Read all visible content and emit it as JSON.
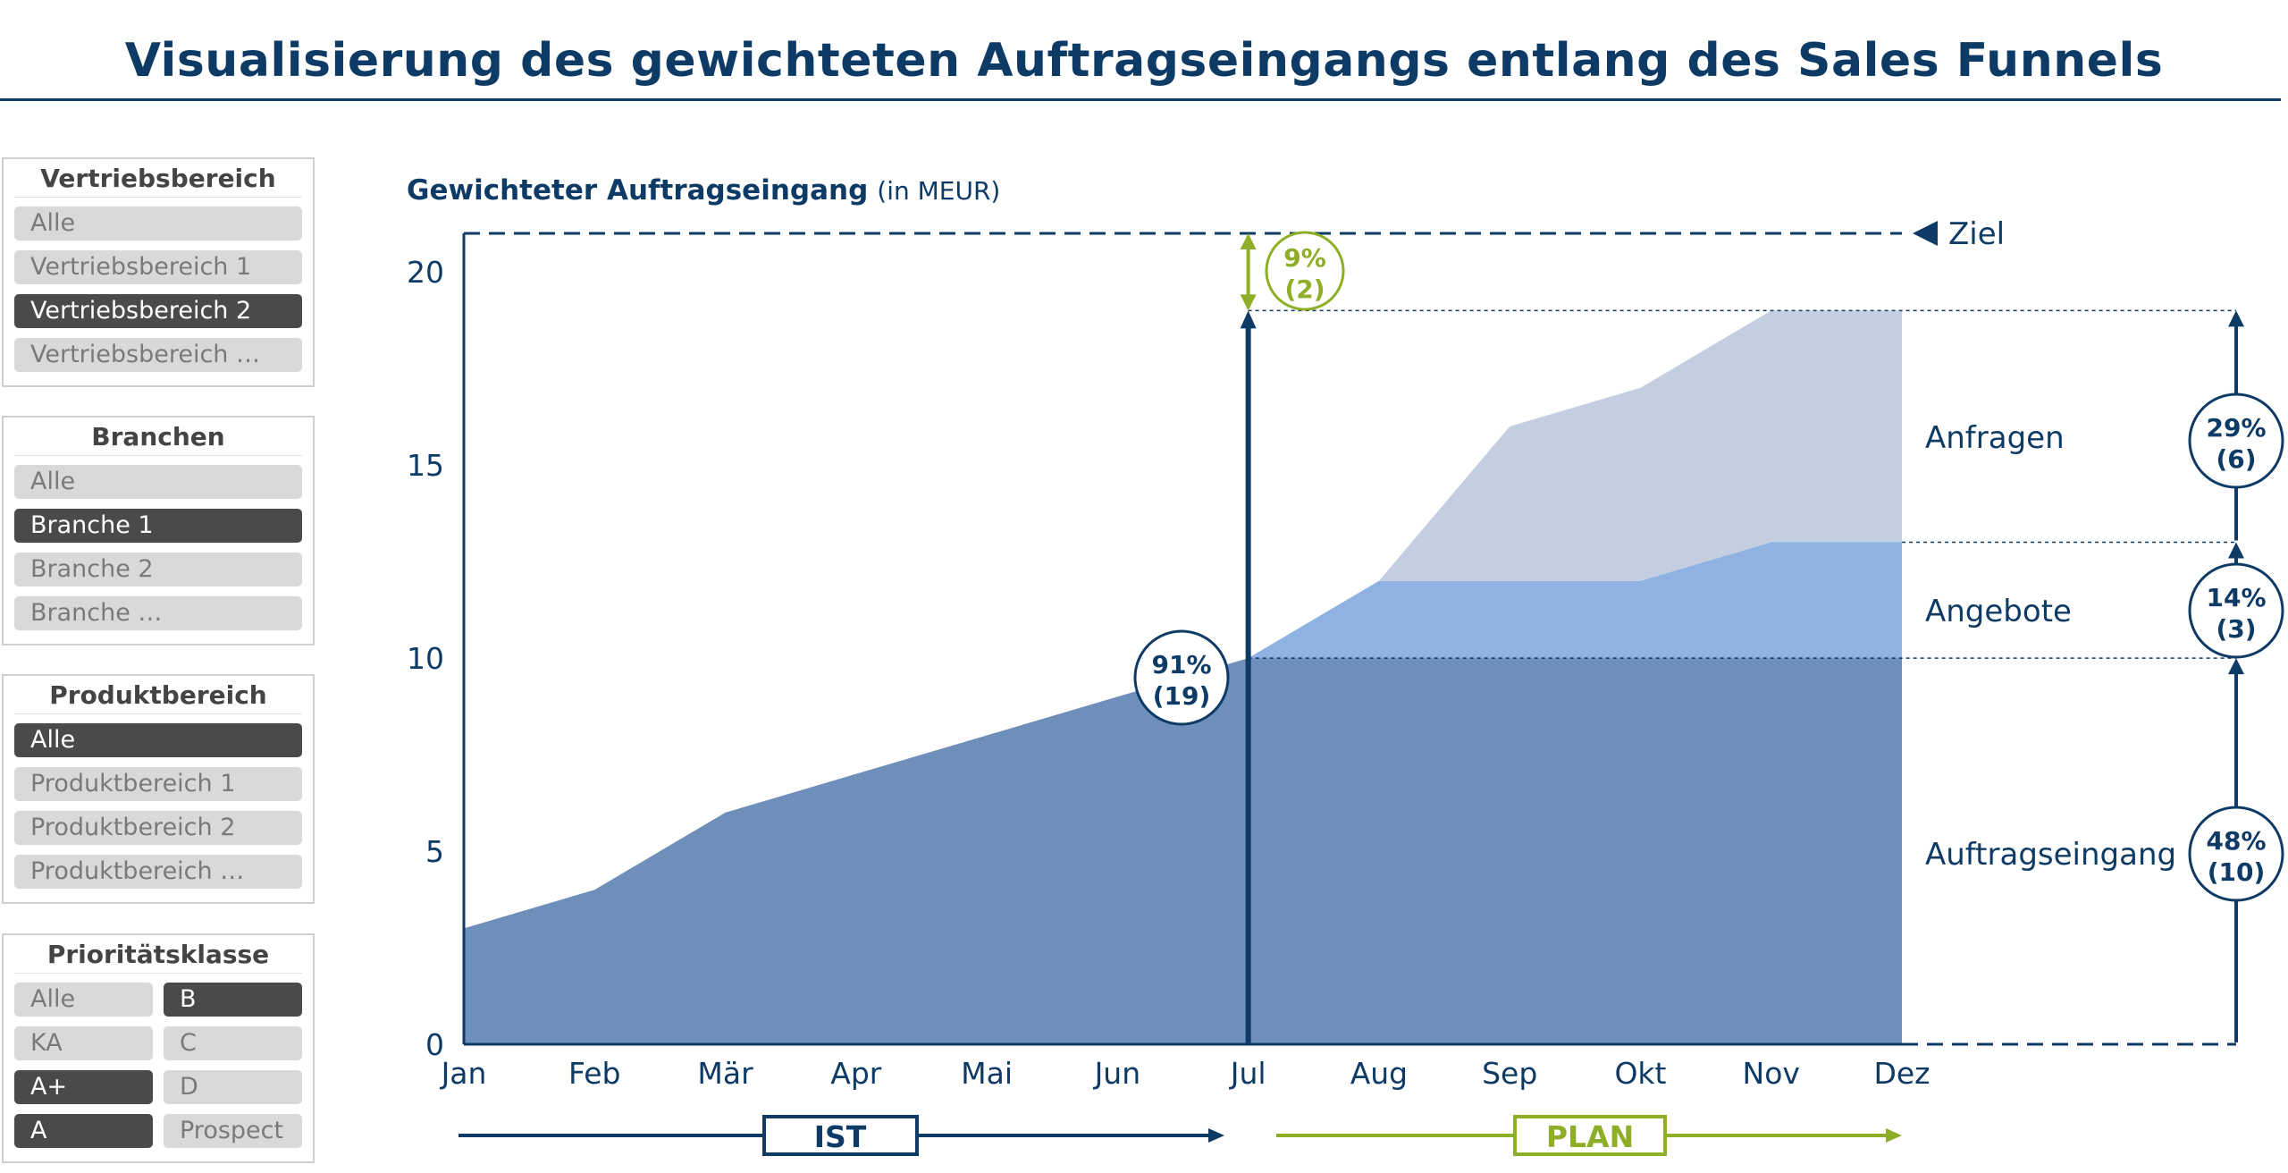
{
  "title": "Visualisierung des gewichteten Auftragseingangs entlang des Sales Funnels",
  "filters": [
    {
      "heading": "Vertriebsbereich",
      "columns": 1,
      "options": [
        {
          "label": "Alle",
          "selected": false
        },
        {
          "label": "Vertriebsbereich 1",
          "selected": false
        },
        {
          "label": "Vertriebsbereich 2",
          "selected": true
        },
        {
          "label": "Vertriebsbereich …",
          "selected": false
        }
      ]
    },
    {
      "heading": "Branchen",
      "columns": 1,
      "options": [
        {
          "label": "Alle",
          "selected": false
        },
        {
          "label": "Branche 1",
          "selected": true
        },
        {
          "label": "Branche 2",
          "selected": false
        },
        {
          "label": "Branche …",
          "selected": false
        }
      ]
    },
    {
      "heading": "Produktbereich",
      "columns": 1,
      "options": [
        {
          "label": "Alle",
          "selected": true
        },
        {
          "label": "Produktbereich 1",
          "selected": false
        },
        {
          "label": "Produktbereich 2",
          "selected": false
        },
        {
          "label": "Produktbereich …",
          "selected": false
        }
      ]
    },
    {
      "heading": "Prioritätsklasse",
      "columns": 2,
      "options": [
        {
          "label": "Alle",
          "selected": false
        },
        {
          "label": "B",
          "selected": true
        },
        {
          "label": "KA",
          "selected": false
        },
        {
          "label": "C",
          "selected": false
        },
        {
          "label": "A+",
          "selected": true
        },
        {
          "label": "D",
          "selected": false
        },
        {
          "label": "A",
          "selected": true
        },
        {
          "label": "Prospect",
          "selected": false
        }
      ]
    }
  ],
  "chart_data": {
    "type": "area",
    "title": "Gewichteter Auftragseingang",
    "title_unit": "(in MEUR)",
    "categories": [
      "Jan",
      "Feb",
      "Mär",
      "Apr",
      "Mai",
      "Jun",
      "Jul",
      "Aug",
      "Sep",
      "Okt",
      "Nov",
      "Dez"
    ],
    "ylim": [
      0,
      21
    ],
    "yticks": [
      0,
      5,
      10,
      15,
      20
    ],
    "series": [
      {
        "name": "Auftragseingang",
        "color": "#6f8fbb",
        "values": [
          3,
          4,
          6,
          7,
          8,
          9,
          10,
          10,
          10,
          10,
          10,
          10
        ]
      },
      {
        "name": "Angebote",
        "color": "#8fb2e3",
        "values": [
          0,
          0,
          0,
          0,
          0,
          0,
          0,
          2,
          2,
          2,
          3,
          3
        ]
      },
      {
        "name": "Anfragen",
        "color": "#c3cfe1",
        "values": [
          0,
          0,
          0,
          0,
          0,
          0,
          0,
          0,
          4,
          5,
          6,
          6
        ]
      }
    ],
    "target": {
      "label": "Ziel",
      "value": 21
    },
    "current_month": "Jul",
    "gap_color": "#8fae27",
    "dark_color": "#0e3a66",
    "annotations": {
      "current": {
        "pct": "91%",
        "abs": "(19)",
        "value": 19
      },
      "gap": {
        "pct": "9%",
        "abs": "(2)",
        "from": 19,
        "to": 21
      },
      "anfragen": {
        "pct": "29%",
        "abs": "(6)",
        "from": 13,
        "to": 19
      },
      "angebote": {
        "pct": "14%",
        "abs": "(3)",
        "from": 10,
        "to": 13
      },
      "auftragseingang": {
        "pct": "48%",
        "abs": "(10)",
        "from": 0,
        "to": 10
      }
    },
    "phases": {
      "ist": "IST",
      "plan": "PLAN",
      "ist_end": "Jul",
      "plan_start": "Jul"
    }
  }
}
